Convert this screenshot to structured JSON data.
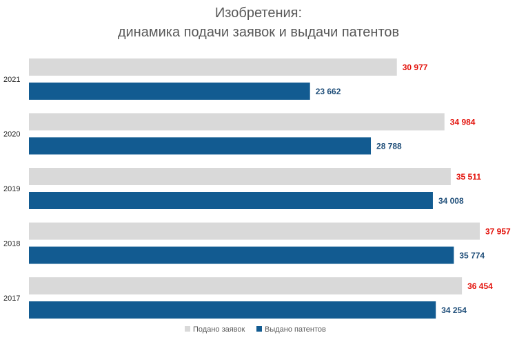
{
  "chart_data": {
    "type": "bar",
    "orientation": "horizontal",
    "title_lines": [
      "Изобретения:",
      "динамика подачи заявок и выдачи патентов"
    ],
    "categories": [
      "2021",
      "2020",
      "2019",
      "2018",
      "2017"
    ],
    "series": [
      {
        "name": "Подано заявок",
        "color": "#d9d9d9",
        "label_color": "#e3120b",
        "values": [
          30977,
          34984,
          35511,
          37957,
          36454
        ],
        "labels": [
          "30 977",
          "34 984",
          "35 511",
          "37 957",
          "36 454"
        ]
      },
      {
        "name": "Выдано патентов",
        "color": "#125b91",
        "label_color": "#1f4e79",
        "values": [
          23662,
          28788,
          34008,
          35774,
          34254
        ],
        "labels": [
          "23 662",
          "28 788",
          "34 008",
          "35 774",
          "34 254"
        ]
      }
    ],
    "xlim": [
      0,
      40000
    ],
    "grid": false,
    "legend_position": "bottom"
  }
}
